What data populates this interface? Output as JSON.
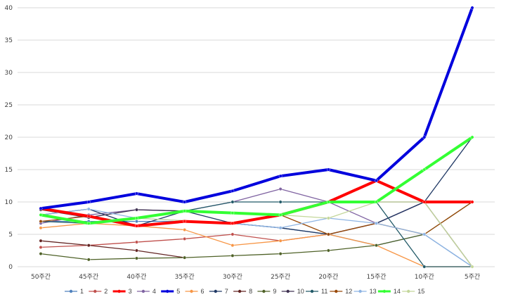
{
  "chart_data": {
    "type": "line",
    "categories": [
      "50주간",
      "45주간",
      "40주간",
      "35주간",
      "30주간",
      "25주간",
      "20주간",
      "15주간",
      "10주간",
      "5주간"
    ],
    "ylim": [
      0,
      40
    ],
    "yticks": [
      0,
      5,
      10,
      15,
      20,
      25,
      30,
      35,
      40
    ],
    "grid": true,
    "legend_position": "bottom",
    "series": [
      {
        "name": "1",
        "color": "#4f81bd",
        "width": 1.3,
        "values": [
          7,
          7,
          7,
          7,
          6.7,
          6,
          5,
          3.3,
          5,
          0
        ]
      },
      {
        "name": "2",
        "color": "#c0504d",
        "width": 1.3,
        "values": [
          3,
          3.3,
          3.8,
          4.3,
          5,
          4,
          5,
          6.7,
          10,
          10
        ]
      },
      {
        "name": "3",
        "color": "#ff0000",
        "width": 4,
        "values": [
          9,
          7.8,
          6.3,
          7,
          6.7,
          8,
          10,
          13.3,
          10,
          10
        ]
      },
      {
        "name": "4",
        "color": "#8064a2",
        "width": 1.3,
        "values": [
          6.7,
          8,
          8.8,
          8.6,
          10,
          12,
          10,
          6.7,
          10,
          10
        ]
      },
      {
        "name": "5",
        "color": "#0000dd",
        "width": 4,
        "values": [
          9,
          10,
          11.3,
          10,
          11.7,
          14,
          15,
          13.3,
          20,
          40
        ]
      },
      {
        "name": "6",
        "color": "#f79646",
        "width": 1.3,
        "values": [
          6,
          6.7,
          6.3,
          5.7,
          3.3,
          4,
          5,
          3.3,
          0,
          0
        ]
      },
      {
        "name": "7",
        "color": "#1f3864",
        "width": 1.3,
        "values": [
          8,
          8.9,
          6.3,
          8.6,
          6.7,
          6,
          5,
          6.7,
          10,
          20
        ]
      },
      {
        "name": "8",
        "color": "#632523",
        "width": 1.3,
        "values": [
          4,
          3.3,
          2.5,
          1.4,
          null,
          null,
          null,
          null,
          null,
          null
        ]
      },
      {
        "name": "9",
        "color": "#4f6228",
        "width": 1.3,
        "values": [
          2,
          1.1,
          1.3,
          1.4,
          1.7,
          2,
          2.5,
          3.3,
          5,
          10
        ]
      },
      {
        "name": "10",
        "color": "#3f3151",
        "width": 1.3,
        "values": [
          8.8,
          7.6,
          8.8,
          8.6,
          8.3,
          8,
          10,
          10,
          10,
          0
        ]
      },
      {
        "name": "11",
        "color": "#215967",
        "width": 1.3,
        "values": [
          7,
          6.7,
          7.5,
          8.6,
          10,
          10,
          10,
          10,
          0,
          0
        ]
      },
      {
        "name": "12",
        "color": "#984807",
        "width": 1.3,
        "values": [
          7,
          7.8,
          6.3,
          7.1,
          6.7,
          8,
          5,
          6.7,
          5,
          10
        ]
      },
      {
        "name": "13",
        "color": "#8eb4e3",
        "width": 1.3,
        "values": [
          8,
          8.9,
          7.5,
          7.1,
          6.7,
          6,
          7.5,
          6.7,
          5,
          0
        ]
      },
      {
        "name": "14",
        "color": "#33ff33",
        "width": 4,
        "values": [
          8,
          6.7,
          7.5,
          8.6,
          8.3,
          8,
          10,
          10,
          15,
          20
        ]
      },
      {
        "name": "15",
        "color": "#c4d79b",
        "width": 1.3,
        "values": [
          8,
          6.7,
          7.5,
          7.1,
          6.7,
          8,
          7.5,
          10,
          10,
          0
        ]
      }
    ]
  }
}
